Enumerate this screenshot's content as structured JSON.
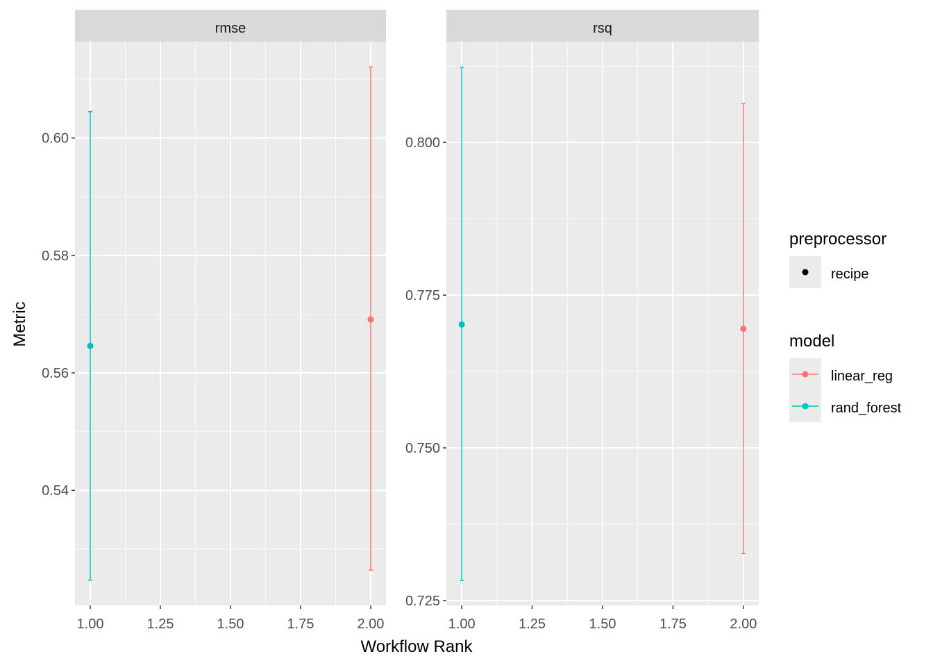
{
  "chart_data": {
    "type": "scatter",
    "subtype": "point-with-errorbars, faceted",
    "xlabel": "Workflow Rank",
    "ylabel": "Metric",
    "colors": {
      "linear_reg": "#F8766D",
      "rand_forest": "#00BFC4",
      "panel_bg": "#EBEBEB",
      "strip_bg": "#D9D9D9"
    },
    "facets": [
      {
        "title": "rmse",
        "xlim": [
          0.9455,
          2.0545
        ],
        "ylim": [
          0.5204,
          0.6164
        ],
        "xticks": [
          1.0,
          1.25,
          1.5,
          1.75,
          2.0
        ],
        "xtick_labels": [
          "1.00",
          "1.25",
          "1.50",
          "1.75",
          "2.00"
        ],
        "yticks": [
          0.54,
          0.56,
          0.58,
          0.6
        ],
        "ytick_labels": [
          "0.54",
          "0.56",
          "0.58",
          "0.60"
        ],
        "points": [
          {
            "model": "rand_forest",
            "x": 1,
            "y": 0.5646,
            "ymin": 0.5247,
            "ymax": 0.6045
          },
          {
            "model": "linear_reg",
            "x": 2,
            "y": 0.5691,
            "ymin": 0.5264,
            "ymax": 0.6121
          }
        ]
      },
      {
        "title": "rsq",
        "xlim": [
          0.9455,
          2.0545
        ],
        "ylim": [
          0.7242,
          0.8165
        ],
        "xticks": [
          1.0,
          1.25,
          1.5,
          1.75,
          2.0
        ],
        "xtick_labels": [
          "1.00",
          "1.25",
          "1.50",
          "1.75",
          "2.00"
        ],
        "yticks": [
          0.725,
          0.75,
          0.775,
          0.8
        ],
        "ytick_labels": [
          "0.725",
          "0.750",
          "0.775",
          "0.800"
        ],
        "points": [
          {
            "model": "rand_forest",
            "x": 1,
            "y": 0.7702,
            "ymin": 0.7283,
            "ymax": 0.8123
          },
          {
            "model": "linear_reg",
            "x": 2,
            "y": 0.7695,
            "ymin": 0.7327,
            "ymax": 0.8064
          }
        ]
      }
    ],
    "legend": {
      "placement": "right",
      "groups": [
        {
          "title": "preprocessor",
          "entries": [
            "recipe"
          ]
        },
        {
          "title": "model",
          "entries": [
            "linear_reg",
            "rand_forest"
          ]
        }
      ]
    }
  }
}
